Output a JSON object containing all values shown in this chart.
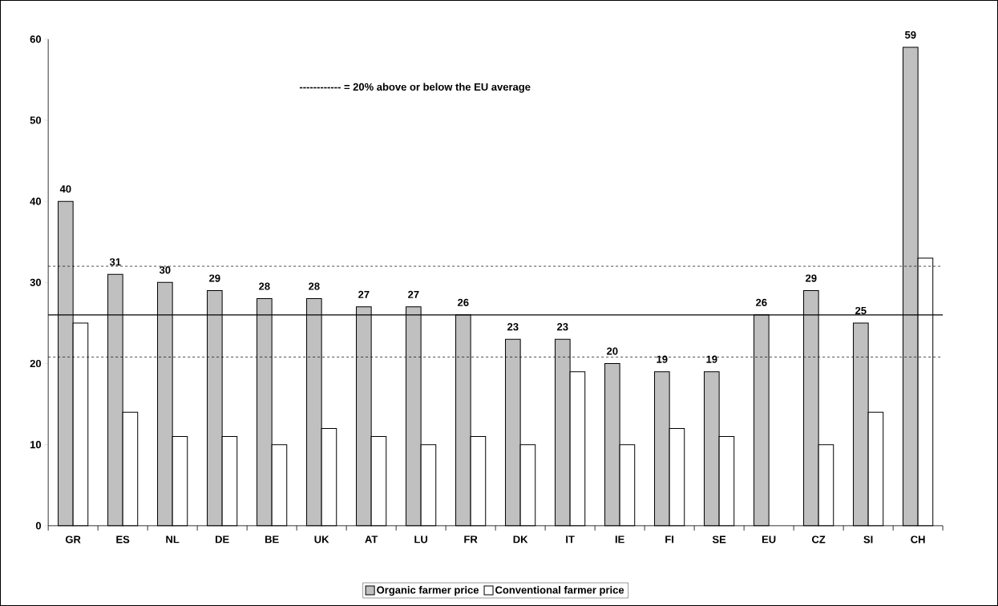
{
  "chart_data": {
    "type": "bar",
    "categories": [
      "GR",
      "ES",
      "NL",
      "DE",
      "BE",
      "UK",
      "AT",
      "LU",
      "FR",
      "DK",
      "IT",
      "IE",
      "FI",
      "SE",
      "EU",
      "CZ",
      "SI",
      "CH"
    ],
    "series": [
      {
        "name": "Organic farmer price",
        "color": "#c0c0c0",
        "values": [
          40,
          31,
          30,
          29,
          28,
          28,
          27,
          27,
          26,
          23,
          23,
          20,
          19,
          19,
          26,
          29,
          25,
          59
        ],
        "value_labels": [
          "40",
          "31",
          "30",
          "29",
          "28",
          "28",
          "27",
          "27",
          "26",
          "23",
          "23",
          "20",
          "19",
          "19",
          "26",
          "29",
          "25",
          "59"
        ]
      },
      {
        "name": "Conventional farmer price",
        "color": "#ffffff",
        "values": [
          25,
          14,
          11,
          11,
          10,
          12,
          11,
          10,
          11,
          10,
          19,
          10,
          12,
          11,
          null,
          10,
          14,
          33
        ]
      }
    ],
    "ylim": [
      0,
      60
    ],
    "yticks": [
      0,
      10,
      20,
      30,
      40,
      50,
      60
    ],
    "ref_lines": [
      {
        "axis": "y",
        "value": 26,
        "line_style": "solid"
      },
      {
        "axis": "y",
        "value": 32,
        "line_style": "dashed"
      },
      {
        "axis": "y",
        "value": 20.8,
        "line_style": "dashed"
      }
    ],
    "annotations": [
      "------------     =     20% above or below the EU average"
    ],
    "grid": false,
    "legend": "bottom"
  }
}
